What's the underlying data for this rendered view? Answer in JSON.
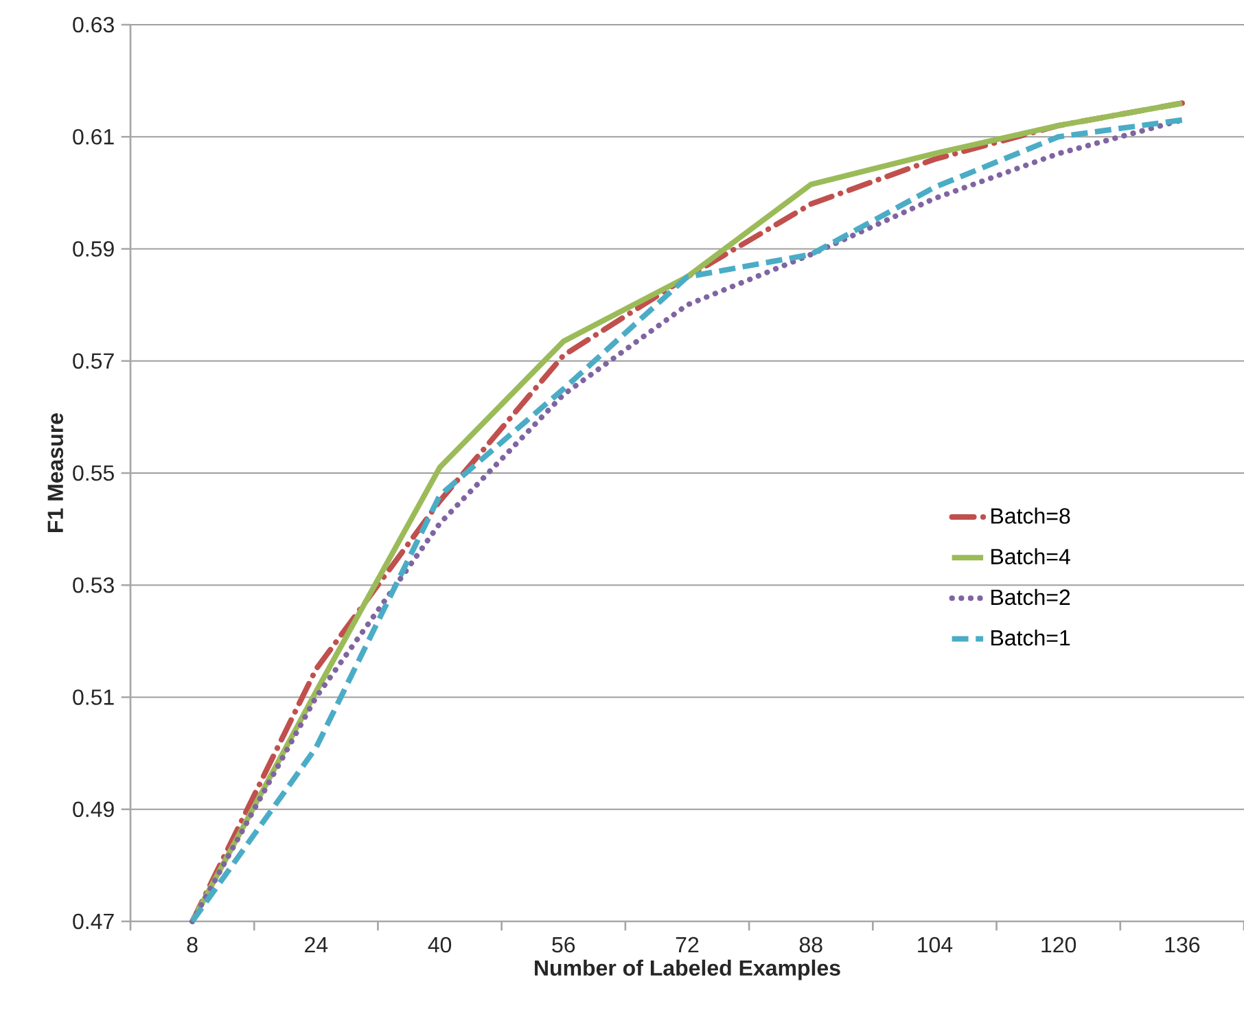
{
  "chart_data": {
    "type": "line",
    "xlabel": "Number of Labeled Examples",
    "ylabel": "F1 Measure",
    "categories": [
      "8",
      "24",
      "40",
      "56",
      "72",
      "88",
      "104",
      "120",
      "136"
    ],
    "ylim": [
      0.47,
      0.63
    ],
    "yticks": [
      0.47,
      0.49,
      0.51,
      0.53,
      0.55,
      0.57,
      0.59,
      0.61,
      0.63
    ],
    "grid": "y",
    "legend": "right",
    "marker": "none",
    "series": [
      {
        "name": "Batch=8",
        "color": "#c0504d",
        "line_style": "dashdot",
        "values": [
          0.47,
          0.515,
          0.545,
          0.571,
          0.585,
          0.598,
          0.606,
          0.612,
          0.616
        ]
      },
      {
        "name": "Batch=4",
        "color": "#9bbb59",
        "line_style": "solid",
        "values": [
          0.47,
          0.511,
          0.551,
          0.5735,
          0.585,
          0.6015,
          0.607,
          0.612,
          0.616
        ]
      },
      {
        "name": "Batch=2",
        "color": "#8064a2",
        "line_style": "dotted",
        "values": [
          0.47,
          0.51,
          0.541,
          0.564,
          0.58,
          0.589,
          0.599,
          0.607,
          0.613
        ]
      },
      {
        "name": "Batch=1",
        "color": "#4bacc6",
        "line_style": "dashed",
        "values": [
          0.47,
          0.501,
          0.546,
          0.565,
          0.585,
          0.589,
          0.601,
          0.61,
          0.613
        ]
      }
    ]
  }
}
